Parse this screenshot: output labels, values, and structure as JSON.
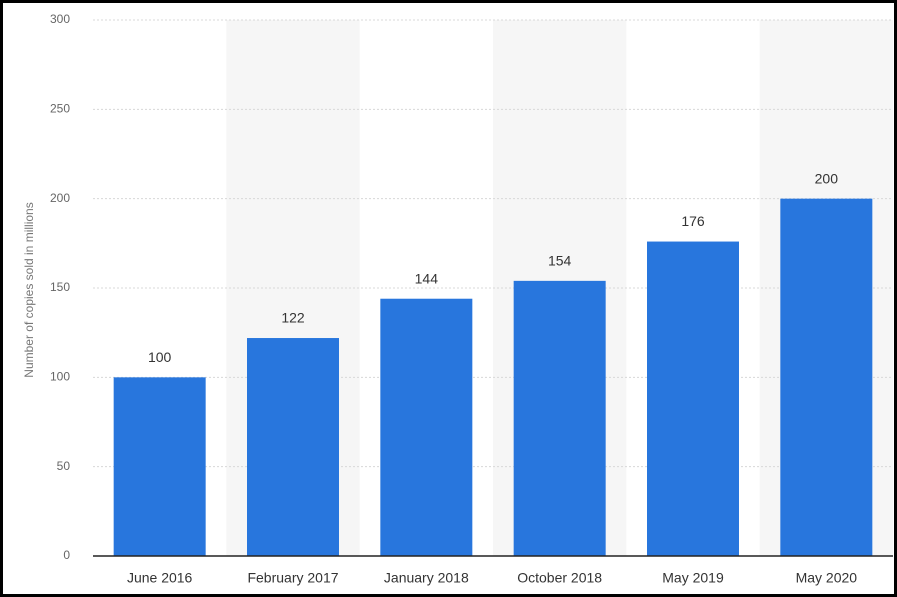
{
  "chart_data": {
    "type": "bar",
    "y_label": "Number of copies sold in millions",
    "categories": [
      "June 2016",
      "February 2017",
      "January 2018",
      "October 2018",
      "May 2019",
      "May 2020"
    ],
    "values": [
      100,
      122,
      144,
      154,
      176,
      200
    ],
    "color": "#2876dd",
    "ylim": [
      0,
      300
    ],
    "yticks": [
      0,
      50,
      100,
      150,
      200,
      250,
      300
    ],
    "grid": true
  }
}
